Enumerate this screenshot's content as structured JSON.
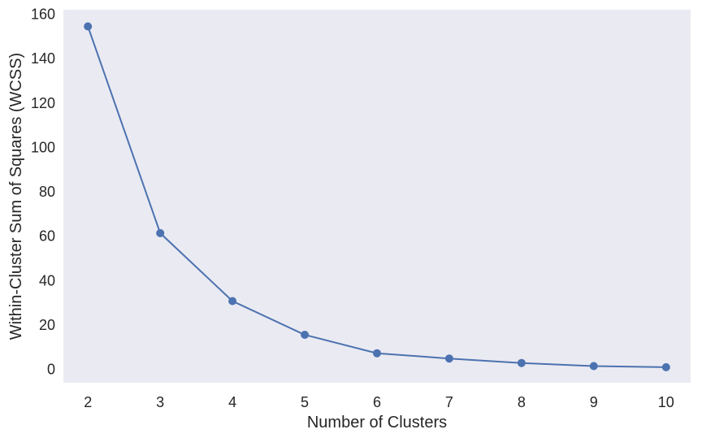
{
  "chart_data": {
    "type": "line",
    "title": "",
    "xlabel": "Number of Clusters",
    "ylabel": "Within-Cluster Sum of Squares (WCSS)",
    "x": [
      2,
      3,
      4,
      5,
      6,
      7,
      8,
      9,
      10
    ],
    "series": [
      {
        "values": [
          154.5,
          61.4,
          30.8,
          15.6,
          7.3,
          4.9,
          2.9,
          1.5,
          1.0
        ]
      }
    ],
    "xticks": [
      "2",
      "3",
      "4",
      "5",
      "6",
      "7",
      "8",
      "9",
      "10"
    ],
    "yticks": [
      "0",
      "20",
      "40",
      "60",
      "80",
      "100",
      "120",
      "140",
      "160"
    ],
    "xlim": [
      1.66,
      10.34
    ],
    "ylim": [
      -6,
      162
    ],
    "grid": false,
    "colors": {
      "plot_background": "#eaeaf2",
      "line": "#4c72b0",
      "text": "#262626"
    }
  }
}
